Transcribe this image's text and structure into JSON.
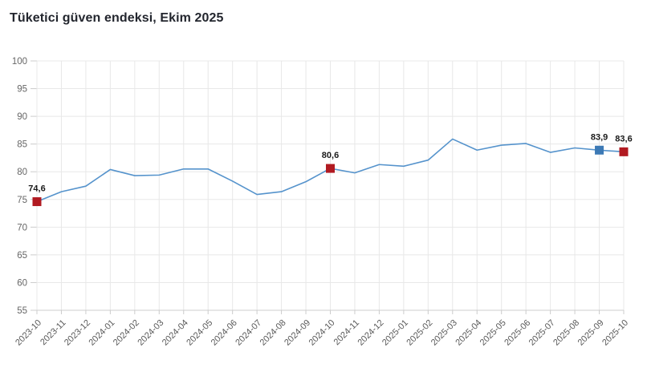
{
  "title": "Tüketici güven endeksi, Ekim 2025",
  "chart_data": {
    "type": "line",
    "title": "Tüketici güven endeksi, Ekim 2025",
    "x": [
      "2023-10",
      "2023-11",
      "2023-12",
      "2024-01",
      "2024-02",
      "2024-03",
      "2024-04",
      "2024-05",
      "2024-06",
      "2024-07",
      "2024-08",
      "2024-09",
      "2024-10",
      "2024-11",
      "2024-12",
      "2025-01",
      "2025-02",
      "2025-03",
      "2025-04",
      "2025-05",
      "2025-06",
      "2025-07",
      "2025-08",
      "2025-09",
      "2025-10"
    ],
    "series": [
      {
        "name": "Tüketici güven endeksi",
        "values": [
          74.6,
          76.4,
          77.4,
          80.4,
          79.3,
          79.4,
          80.5,
          80.5,
          78.3,
          75.9,
          76.4,
          78.2,
          80.6,
          79.8,
          81.3,
          81.0,
          82.1,
          85.9,
          83.9,
          84.8,
          85.1,
          83.5,
          84.3,
          83.9,
          83.6
        ]
      }
    ],
    "ylim": [
      55,
      100
    ],
    "yticks": [
      55,
      60,
      65,
      70,
      75,
      80,
      85,
      90,
      95,
      100
    ],
    "grid": true,
    "legend_position": "none",
    "highlighted_points": [
      {
        "x": "2023-10",
        "value": 74.6,
        "label": "74,6",
        "color_key": "marker_red"
      },
      {
        "x": "2024-10",
        "value": 80.6,
        "label": "80,6",
        "color_key": "marker_red"
      },
      {
        "x": "2025-09",
        "value": 83.9,
        "label": "83,9",
        "color_key": "marker_blue"
      },
      {
        "x": "2025-10",
        "value": 83.6,
        "label": "83,6",
        "color_key": "marker_red"
      }
    ],
    "colors": {
      "line": "#5593cc",
      "marker_red": "#b11a21",
      "marker_blue": "#3c79b5",
      "grid": "#e8e8e8",
      "axis": "#cccccc",
      "axis_text": "#666666",
      "point_label_text": "#1a1a1a",
      "title_text": "#23262e",
      "background": "#ffffff"
    }
  }
}
